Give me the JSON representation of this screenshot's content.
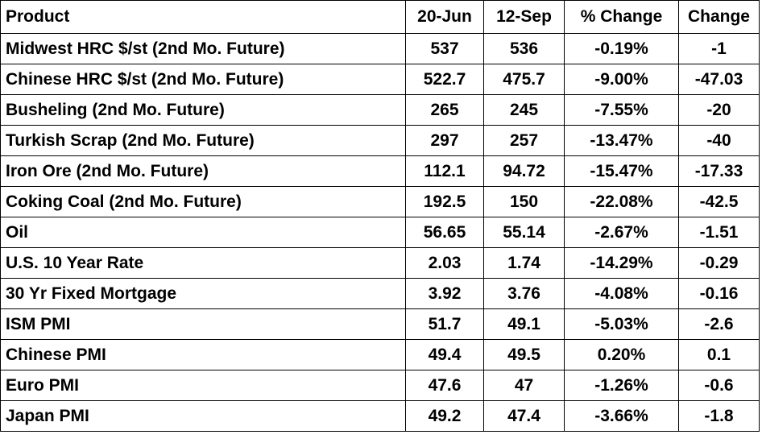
{
  "table": {
    "header": [
      "Product",
      "20-Jun",
      "12-Sep",
      "% Change",
      "Change"
    ],
    "rows": [
      [
        "Midwest HRC $/st (2nd Mo. Future)",
        "537",
        "536",
        "-0.19%",
        "-1"
      ],
      [
        "Chinese HRC $/st (2nd Mo. Future)",
        "522.7",
        "475.7",
        "-9.00%",
        "-47.03"
      ],
      [
        "Busheling (2nd Mo. Future)",
        "265",
        "245",
        "-7.55%",
        "-20"
      ],
      [
        "Turkish Scrap (2nd Mo. Future)",
        "297",
        "257",
        "-13.47%",
        "-40"
      ],
      [
        "Iron Ore (2nd Mo. Future)",
        "112.1",
        "94.72",
        "-15.47%",
        "-17.33"
      ],
      [
        "Coking Coal (2nd Mo. Future)",
        "192.5",
        "150",
        "-22.08%",
        "-42.5"
      ],
      [
        "Oil",
        "56.65",
        "55.14",
        "-2.67%",
        "-1.51"
      ],
      [
        "U.S. 10 Year Rate",
        "2.03",
        "1.74",
        "-14.29%",
        "-0.29"
      ],
      [
        "30 Yr Fixed Mortgage",
        "3.92",
        "3.76",
        "-4.08%",
        "-0.16"
      ],
      [
        "ISM PMI",
        "51.7",
        "49.1",
        "-5.03%",
        "-2.6"
      ],
      [
        "Chinese PMI",
        "49.4",
        "49.5",
        "0.20%",
        "0.1"
      ],
      [
        "Euro PMI",
        "47.6",
        "47",
        "-1.26%",
        "-0.6"
      ],
      [
        "Japan PMI",
        "49.2",
        "47.4",
        "-3.66%",
        "-1.8"
      ]
    ]
  }
}
